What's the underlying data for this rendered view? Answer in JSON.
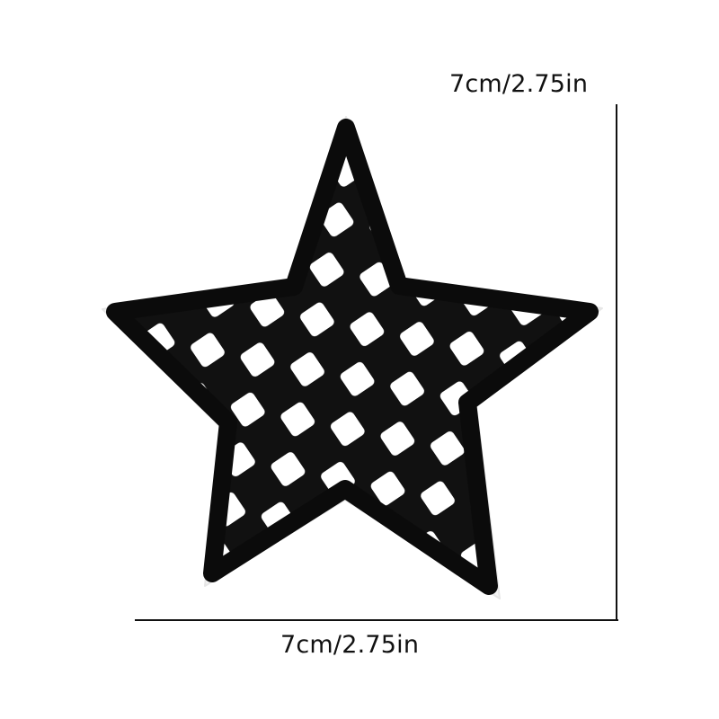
{
  "dimensions": {
    "height_label": "7cm/2.75in",
    "width_label": "7cm/2.75in"
  },
  "patch": {
    "shape": "five-point star",
    "pattern": "checkerboard",
    "colors": {
      "fill_dark": "#111111",
      "fill_light": "#ffffff",
      "outline": "#0b0b0b",
      "backing": "#f3f3f3"
    }
  },
  "colors": {
    "background": "#ffffff",
    "text": "#111111",
    "measure_line": "#111111"
  }
}
